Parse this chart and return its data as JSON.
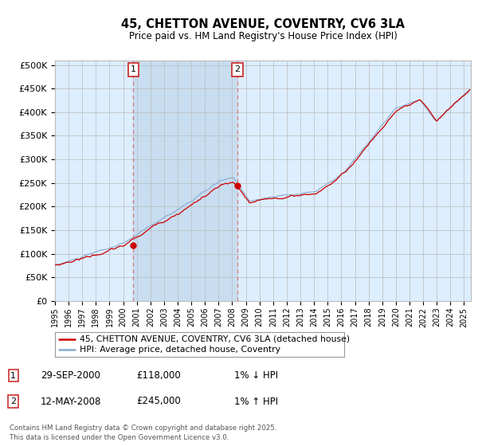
{
  "title": "45, CHETTON AVENUE, COVENTRY, CV6 3LA",
  "subtitle": "Price paid vs. HM Land Registry's House Price Index (HPI)",
  "ylabel_ticks": [
    "£0",
    "£50K",
    "£100K",
    "£150K",
    "£200K",
    "£250K",
    "£300K",
    "£350K",
    "£400K",
    "£450K",
    "£500K"
  ],
  "ytick_values": [
    0,
    50000,
    100000,
    150000,
    200000,
    250000,
    300000,
    350000,
    400000,
    450000,
    500000
  ],
  "ylim": [
    0,
    510000
  ],
  "xlim_start": 1995.0,
  "xlim_end": 2025.5,
  "marker1_x": 2000.75,
  "marker1_y": 118000,
  "marker1_label": "1",
  "marker2_x": 2008.37,
  "marker2_y": 245000,
  "marker2_label": "2",
  "line_color_red": "#cc0000",
  "line_color_blue": "#88aacc",
  "dashed_color": "#dd6666",
  "grid_color": "#cccccc",
  "plot_bg": "#ddeeff",
  "legend_line1": "45, CHETTON AVENUE, COVENTRY, CV6 3LA (detached house)",
  "legend_line2": "HPI: Average price, detached house, Coventry",
  "table_row1": [
    "1",
    "29-SEP-2000",
    "£118,000",
    "1% ↓ HPI"
  ],
  "table_row2": [
    "2",
    "12-MAY-2008",
    "£245,000",
    "1% ↑ HPI"
  ],
  "footer": "Contains HM Land Registry data © Crown copyright and database right 2025.\nThis data is licensed under the Open Government Licence v3.0.",
  "xtick_years": [
    1995,
    1996,
    1997,
    1998,
    1999,
    2000,
    2001,
    2002,
    2003,
    2004,
    2005,
    2006,
    2007,
    2008,
    2009,
    2010,
    2011,
    2012,
    2013,
    2014,
    2015,
    2016,
    2017,
    2018,
    2019,
    2020,
    2021,
    2022,
    2023,
    2024,
    2025
  ],
  "span_color": "#ddeeff",
  "span_alpha": 0.8
}
